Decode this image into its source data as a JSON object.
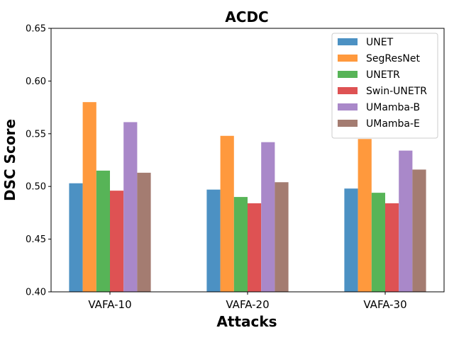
{
  "chart_data": {
    "type": "bar",
    "title": "ACDC",
    "xlabel": "Attacks",
    "ylabel": "DSC Score",
    "categories": [
      "VAFA-10",
      "VAFA-20",
      "VAFA-30"
    ],
    "ylim": [
      0.4,
      0.65
    ],
    "yticks": [
      "0.40",
      "0.45",
      "0.50",
      "0.55",
      "0.60",
      "0.65"
    ],
    "grid": false,
    "legend_position": "top-right",
    "series": [
      {
        "name": "UNET",
        "color": "#4c91c3",
        "values": [
          0.503,
          0.497,
          0.498
        ]
      },
      {
        "name": "SegResNet",
        "color": "#ff993d",
        "values": [
          0.58,
          0.548,
          0.545
        ]
      },
      {
        "name": "UNETR",
        "color": "#57b457",
        "values": [
          0.515,
          0.49,
          0.494
        ]
      },
      {
        "name": "Swin-UNETR",
        "color": "#de5253",
        "values": [
          0.496,
          0.484,
          0.484
        ]
      },
      {
        "name": "UMamba-B",
        "color": "#a988c9",
        "values": [
          0.561,
          0.542,
          0.534
        ]
      },
      {
        "name": "UMamba-E",
        "color": "#a47c71",
        "values": [
          0.513,
          0.504,
          0.516
        ]
      }
    ]
  }
}
